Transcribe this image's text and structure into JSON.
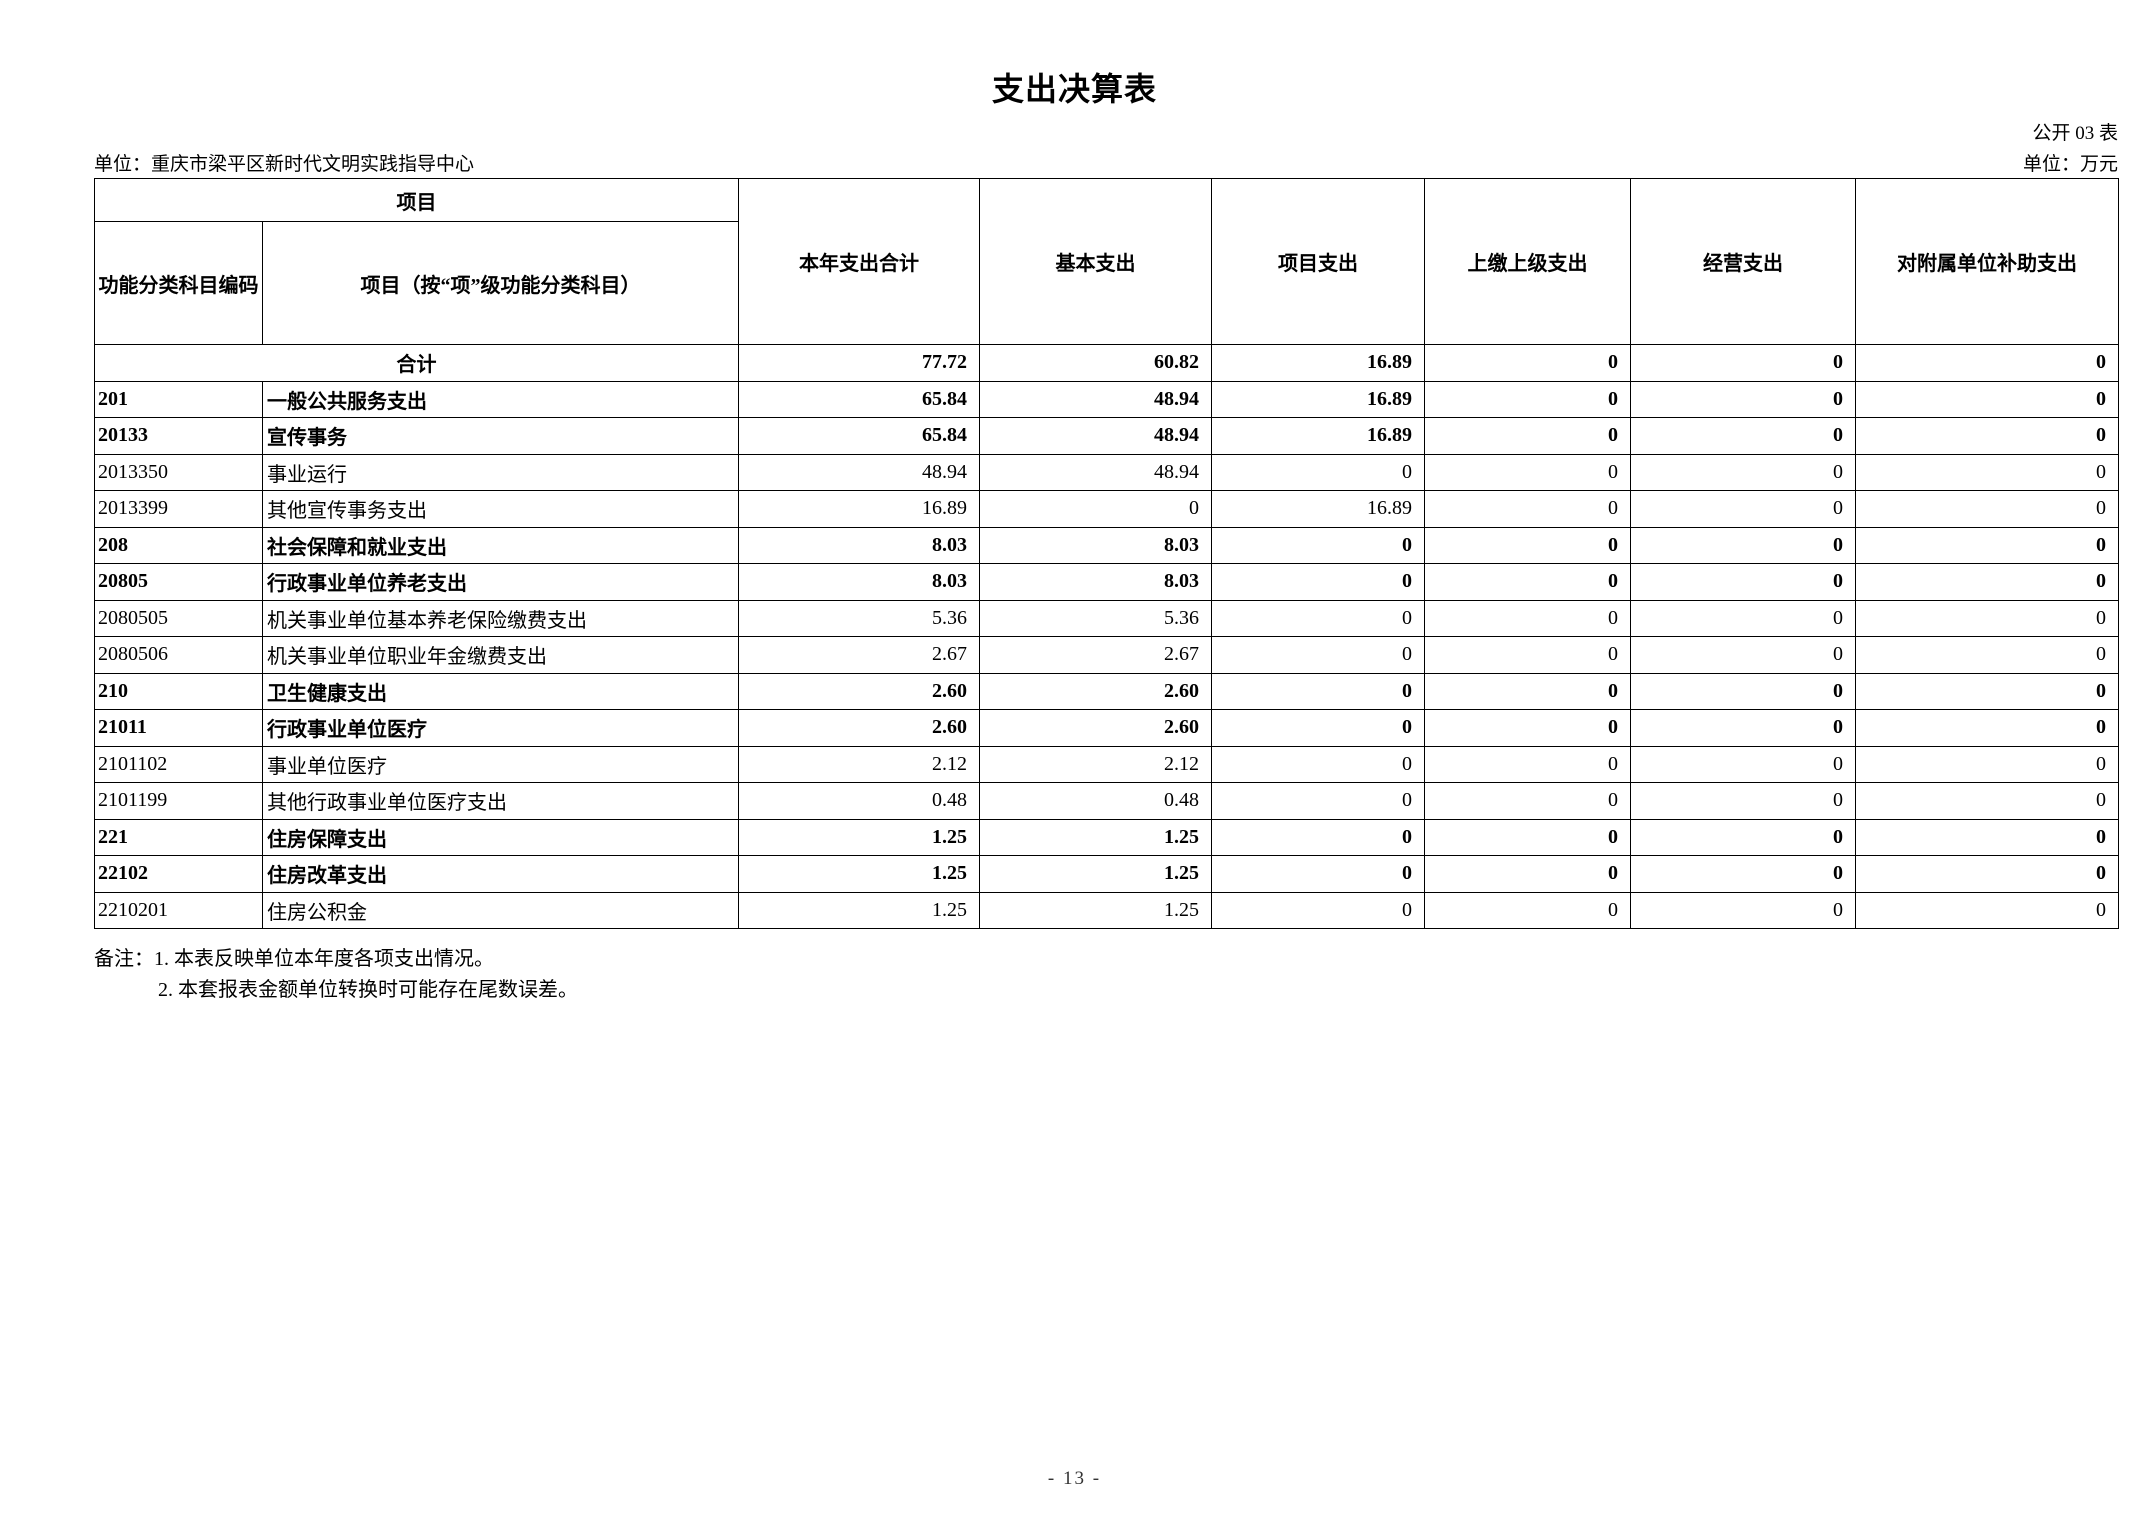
{
  "page": {
    "title": "支出决算表",
    "form_code": "公开 03 表",
    "org_unit": "单位：重庆市梁平区新时代文明实践指导中心",
    "money_unit": "单位：万元",
    "note_line1": "备注：1. 本表反映单位本年度各项支出情况。",
    "note_line2": "2. 本套报表金额单位转换时可能存在尾数误差。",
    "page_number": "- 13 -"
  },
  "table": {
    "header": {
      "project_group": "项目",
      "code_col": "功能分类科目编码",
      "name_col": "项目（按“项”级功能分类科目）",
      "value_cols": [
        "本年支出合计",
        "基本支出",
        "项目支出",
        "上缴上级支出",
        "经营支出",
        "对附属单位补助支出"
      ]
    },
    "rows": [
      {
        "code": "",
        "name": "合计",
        "merged": true,
        "bold": true,
        "values": [
          "77.72",
          "60.82",
          "16.89",
          "0",
          "0",
          "0"
        ]
      },
      {
        "code": "201",
        "name": "一般公共服务支出",
        "bold": true,
        "values": [
          "65.84",
          "48.94",
          "16.89",
          "0",
          "0",
          "0"
        ]
      },
      {
        "code": "20133",
        "name": "宣传事务",
        "bold": true,
        "values": [
          "65.84",
          "48.94",
          "16.89",
          "0",
          "0",
          "0"
        ]
      },
      {
        "code": "2013350",
        "name": "事业运行",
        "bold": false,
        "values": [
          "48.94",
          "48.94",
          "0",
          "0",
          "0",
          "0"
        ]
      },
      {
        "code": "2013399",
        "name": "其他宣传事务支出",
        "bold": false,
        "values": [
          "16.89",
          "0",
          "16.89",
          "0",
          "0",
          "0"
        ]
      },
      {
        "code": "208",
        "name": "社会保障和就业支出",
        "bold": true,
        "values": [
          "8.03",
          "8.03",
          "0",
          "0",
          "0",
          "0"
        ]
      },
      {
        "code": "20805",
        "name": "行政事业单位养老支出",
        "bold": true,
        "values": [
          "8.03",
          "8.03",
          "0",
          "0",
          "0",
          "0"
        ]
      },
      {
        "code": "2080505",
        "name": "机关事业单位基本养老保险缴费支出",
        "bold": false,
        "values": [
          "5.36",
          "5.36",
          "0",
          "0",
          "0",
          "0"
        ]
      },
      {
        "code": "2080506",
        "name": "机关事业单位职业年金缴费支出",
        "bold": false,
        "values": [
          "2.67",
          "2.67",
          "0",
          "0",
          "0",
          "0"
        ]
      },
      {
        "code": "210",
        "name": "卫生健康支出",
        "bold": true,
        "values": [
          "2.60",
          "2.60",
          "0",
          "0",
          "0",
          "0"
        ]
      },
      {
        "code": "21011",
        "name": "行政事业单位医疗",
        "bold": true,
        "values": [
          "2.60",
          "2.60",
          "0",
          "0",
          "0",
          "0"
        ]
      },
      {
        "code": "2101102",
        "name": "事业单位医疗",
        "bold": false,
        "values": [
          "2.12",
          "2.12",
          "0",
          "0",
          "0",
          "0"
        ]
      },
      {
        "code": "2101199",
        "name": "其他行政事业单位医疗支出",
        "bold": false,
        "values": [
          "0.48",
          "0.48",
          "0",
          "0",
          "0",
          "0"
        ]
      },
      {
        "code": "221",
        "name": "住房保障支出",
        "bold": true,
        "values": [
          "1.25",
          "1.25",
          "0",
          "0",
          "0",
          "0"
        ]
      },
      {
        "code": "22102",
        "name": "住房改革支出",
        "bold": true,
        "values": [
          "1.25",
          "1.25",
          "0",
          "0",
          "0",
          "0"
        ]
      },
      {
        "code": "2210201",
        "name": "住房公积金",
        "bold": false,
        "values": [
          "1.25",
          "1.25",
          "0",
          "0",
          "0",
          "0"
        ]
      }
    ]
  }
}
